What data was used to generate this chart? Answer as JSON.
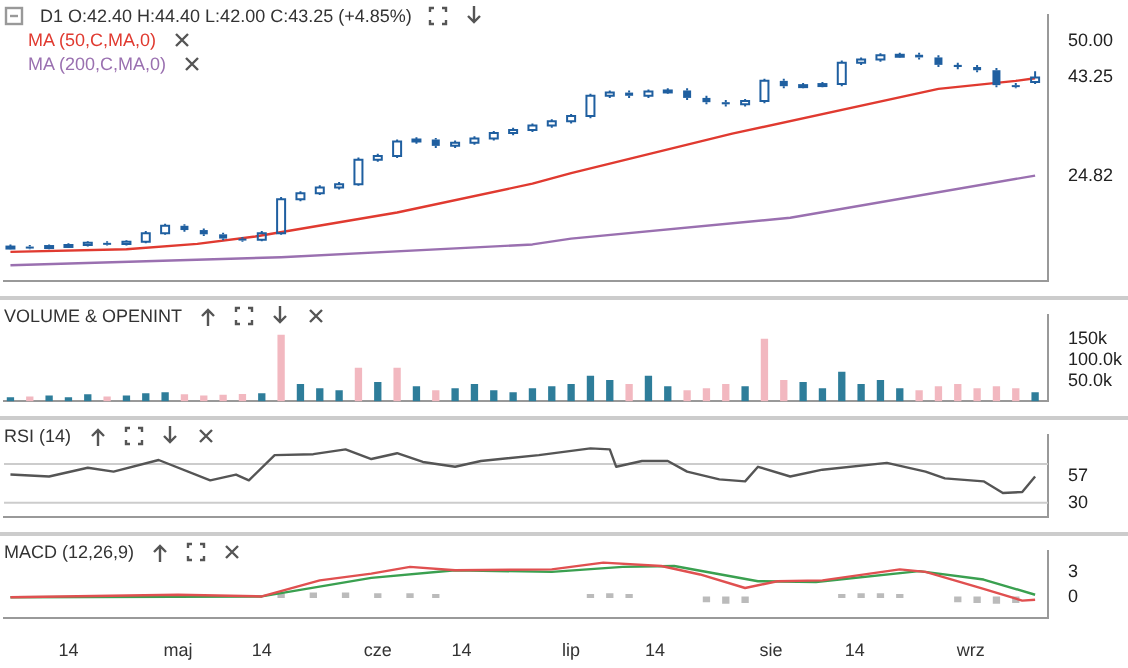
{
  "chart_data": [
    {
      "type": "candlestick",
      "title": "D1 O:42.40 H:44.40 L:42.00 C:43.25 (+4.85%)",
      "color": "#1f5fa0",
      "legend": "top left",
      "tick_labels": "y",
      "x": [
        "--04-05",
        "--04-08",
        "--04-11",
        "--04-14",
        "--04-17",
        "--04-20",
        "--04-23",
        "--04-26",
        "--04-29",
        "--05-02",
        "--05-05",
        "--05-08",
        "--05-11",
        "--05-14",
        "--05-17",
        "--05-20",
        "--05-23",
        "--05-26",
        "--05-29",
        "--06-01",
        "--06-04",
        "--06-07",
        "--06-10",
        "--06-13",
        "--06-16",
        "--06-19",
        "--06-22",
        "--06-25",
        "--06-28",
        "--07-01",
        "--07-04",
        "--07-07",
        "--07-10",
        "--07-13",
        "--07-16",
        "--07-19",
        "--07-22",
        "--07-25",
        "--07-28",
        "--07-31",
        "--08-03",
        "--08-06",
        "--08-09",
        "--08-12",
        "--08-15",
        "--08-18",
        "--08-21",
        "--08-24",
        "--08-27",
        "--08-30",
        "--09-02",
        "--09-05",
        "--09-08",
        "--09-11"
      ],
      "ohlc": [
        [
          11.3,
          11.9,
          11.0,
          11.5
        ],
        [
          11.5,
          11.8,
          11.0,
          11.3
        ],
        [
          11.3,
          11.9,
          11.0,
          11.6
        ],
        [
          11.6,
          12.1,
          11.3,
          11.8
        ],
        [
          11.8,
          12.5,
          11.5,
          12.2
        ],
        [
          12.2,
          12.5,
          11.7,
          12.0
        ],
        [
          12.0,
          12.7,
          11.7,
          12.4
        ],
        [
          12.4,
          14.4,
          12.1,
          14.0
        ],
        [
          14.0,
          15.8,
          13.7,
          15.4
        ],
        [
          15.4,
          15.7,
          14.3,
          14.6
        ],
        [
          14.6,
          14.9,
          13.5,
          13.8
        ],
        [
          13.8,
          14.1,
          12.7,
          13.0
        ],
        [
          13.0,
          13.3,
          12.4,
          12.8
        ],
        [
          12.8,
          14.4,
          12.5,
          14.0
        ],
        [
          14.0,
          20.8,
          13.7,
          20.4
        ],
        [
          20.4,
          21.9,
          20.0,
          21.5
        ],
        [
          21.5,
          23.0,
          21.2,
          22.6
        ],
        [
          22.6,
          23.6,
          22.2,
          23.2
        ],
        [
          23.2,
          28.2,
          22.9,
          27.8
        ],
        [
          27.8,
          28.9,
          27.4,
          28.5
        ],
        [
          28.5,
          31.6,
          28.1,
          31.2
        ],
        [
          31.2,
          32.0,
          30.8,
          31.6
        ],
        [
          31.6,
          31.9,
          30.0,
          30.4
        ],
        [
          30.4,
          31.4,
          30.0,
          31.0
        ],
        [
          31.0,
          32.2,
          30.6,
          31.8
        ],
        [
          31.8,
          33.2,
          31.4,
          32.8
        ],
        [
          32.8,
          33.8,
          32.4,
          33.4
        ],
        [
          33.4,
          34.6,
          33.0,
          34.2
        ],
        [
          34.2,
          35.4,
          33.8,
          35.0
        ],
        [
          35.0,
          36.4,
          34.6,
          36.0
        ],
        [
          36.0,
          40.2,
          35.6,
          39.8
        ],
        [
          39.8,
          40.8,
          39.4,
          40.4
        ],
        [
          40.4,
          40.8,
          39.4,
          39.8
        ],
        [
          39.8,
          41.0,
          39.4,
          40.6
        ],
        [
          40.6,
          41.2,
          40.2,
          40.8
        ],
        [
          40.8,
          41.2,
          39.0,
          39.4
        ],
        [
          39.4,
          39.8,
          38.2,
          38.6
        ],
        [
          38.6,
          39.0,
          37.8,
          38.2
        ],
        [
          38.2,
          39.2,
          37.8,
          38.8
        ],
        [
          38.8,
          43.0,
          38.4,
          42.6
        ],
        [
          42.6,
          43.0,
          41.2,
          41.6
        ],
        [
          41.6,
          42.2,
          41.2,
          41.8
        ],
        [
          41.8,
          42.4,
          41.4,
          42.0
        ],
        [
          42.0,
          46.4,
          41.6,
          46.0
        ],
        [
          46.0,
          47.0,
          45.6,
          46.6
        ],
        [
          46.6,
          47.8,
          46.2,
          47.4
        ],
        [
          47.4,
          47.9,
          47.0,
          47.5
        ],
        [
          47.5,
          47.9,
          46.6,
          47.0
        ],
        [
          47.0,
          47.4,
          45.2,
          45.6
        ],
        [
          45.6,
          46.0,
          44.8,
          45.2
        ],
        [
          45.2,
          45.6,
          44.2,
          44.6
        ],
        [
          44.6,
          45.0,
          41.4,
          41.8
        ],
        [
          41.8,
          42.2,
          41.2,
          41.6
        ],
        [
          42.4,
          44.4,
          42.0,
          43.25
        ]
      ],
      "series": [
        {
          "name": "MA (50,C,MA,0)",
          "type": "line",
          "color": "#e03a30",
          "x": [
            "--04-05",
            "--04-23",
            "--05-04",
            "--05-13",
            "--06-04",
            "--06-25",
            "--07-01",
            "--07-26",
            "--08-27",
            "--09-08",
            "--09-11"
          ],
          "values": [
            10.5,
            11.0,
            12.0,
            13.4,
            17.9,
            23.3,
            25.3,
            32.7,
            41.1,
            42.6,
            43.1
          ]
        },
        {
          "name": "MA (200,C,MA,0)",
          "type": "line",
          "color": "#9a70b0",
          "x": [
            "--04-05",
            "--05-17",
            "--06-25",
            "--07-01",
            "--08-04",
            "--09-11"
          ],
          "values": [
            8.0,
            9.5,
            11.9,
            13.0,
            16.9,
            24.82
          ]
        }
      ],
      "xlim": [
        "--04-04",
        "--09-13"
      ],
      "ylim": [
        5,
        55
      ],
      "yticks": [
        {
          "value": 50,
          "label": "50.00"
        },
        43.25,
        24.82
      ]
    },
    {
      "type": "bar",
      "title": "VOLUME & OPENINT",
      "tick_labels": "y",
      "x": [
        "--04-05",
        "--04-08",
        "--04-11",
        "--04-14",
        "--04-17",
        "--04-20",
        "--04-23",
        "--04-26",
        "--04-29",
        "--05-02",
        "--05-05",
        "--05-08",
        "--05-11",
        "--05-14",
        "--05-17",
        "--05-20",
        "--05-23",
        "--05-26",
        "--05-29",
        "--06-01",
        "--06-04",
        "--06-07",
        "--06-10",
        "--06-13",
        "--06-16",
        "--06-19",
        "--06-22",
        "--06-25",
        "--06-28",
        "--07-01",
        "--07-04",
        "--07-07",
        "--07-10",
        "--07-13",
        "--07-16",
        "--07-19",
        "--07-22",
        "--07-25",
        "--07-28",
        "--07-31",
        "--08-03",
        "--08-06",
        "--08-09",
        "--08-12",
        "--08-15",
        "--08-18",
        "--08-21",
        "--08-24",
        "--08-27",
        "--08-30",
        "--09-02",
        "--09-05",
        "--09-08",
        "--09-11"
      ],
      "values": [
        8000,
        10000,
        12000,
        8000,
        15000,
        10000,
        12000,
        18000,
        20000,
        15000,
        12000,
        14000,
        16000,
        18000,
        160000,
        40000,
        30000,
        25000,
        80000,
        45000,
        80000,
        35000,
        25000,
        30000,
        40000,
        25000,
        20000,
        30000,
        35000,
        40000,
        60000,
        50000,
        40000,
        60000,
        35000,
        25000,
        30000,
        40000,
        35000,
        150000,
        50000,
        45000,
        30000,
        70000,
        40000,
        50000,
        30000,
        25000,
        35000,
        40000,
        30000,
        35000,
        30000,
        20000
      ],
      "colors": [
        "#2e7d9a",
        "#f2b8c0",
        "#2e7d9a",
        "#2e7d9a",
        "#2e7d9a",
        "#f2b8c0",
        "#2e7d9a",
        "#2e7d9a",
        "#2e7d9a",
        "#f2b8c0",
        "#f2b8c0",
        "#f2b8c0",
        "#f2b8c0",
        "#2e7d9a",
        "#f2b8c0",
        "#2e7d9a",
        "#2e7d9a",
        "#2e7d9a",
        "#f2b8c0",
        "#2e7d9a",
        "#f2b8c0",
        "#2e7d9a",
        "#f2b8c0",
        "#2e7d9a",
        "#2e7d9a",
        "#2e7d9a",
        "#2e7d9a",
        "#2e7d9a",
        "#2e7d9a",
        "#2e7d9a",
        "#2e7d9a",
        "#2e7d9a",
        "#f2b8c0",
        "#2e7d9a",
        "#2e7d9a",
        "#f2b8c0",
        "#f2b8c0",
        "#f2b8c0",
        "#2e7d9a",
        "#f2b8c0",
        "#f2b8c0",
        "#2e7d9a",
        "#2e7d9a",
        "#2e7d9a",
        "#2e7d9a",
        "#2e7d9a",
        "#2e7d9a",
        "#f2b8c0",
        "#f2b8c0",
        "#f2b8c0",
        "#f2b8c0",
        "#f2b8c0",
        "#f2b8c0",
        "#2e7d9a"
      ],
      "xlim": [
        "--04-04",
        "--09-13"
      ],
      "ylim": [
        0,
        210000
      ],
      "yticks": [
        {
          "value": 50000,
          "label": "50.0k"
        },
        {
          "value": 100000,
          "label": "100.0k"
        },
        {
          "value": 150000,
          "label": "150k"
        }
      ]
    },
    {
      "type": "line",
      "title": "RSI (14)",
      "color": "#555555",
      "tick_labels": "y",
      "x": [
        "--04-05",
        "--04-11",
        "--04-17",
        "--04-21",
        "--04-28",
        "--05-06",
        "--05-10",
        "--05-12",
        "--05-16",
        "--05-22",
        "--05-27",
        "--05-31",
        "--06-04",
        "--06-08",
        "--06-13",
        "--06-17",
        "--06-26",
        "--07-04",
        "--07-07",
        "--07-08",
        "--07-12",
        "--07-16",
        "--07-19",
        "--07-24",
        "--07-28",
        "--07-30",
        "--08-04",
        "--08-09",
        "--08-19",
        "--08-25",
        "--08-28",
        "--09-03",
        "--09-06",
        "--09-09",
        "--09-11"
      ],
      "values": [
        59,
        57,
        66,
        62,
        74,
        53,
        59,
        53,
        79,
        80,
        85,
        75,
        81,
        72,
        67,
        73,
        79,
        86,
        85,
        67,
        73,
        73,
        62,
        54,
        52,
        67,
        57,
        64,
        71,
        62,
        55,
        52,
        40,
        41,
        57
      ],
      "ref_lines": [
        {
          "axis": "y",
          "value": 70,
          "color": "#cccccc"
        },
        {
          "axis": "y",
          "value": 30,
          "color": "#cccccc"
        }
      ],
      "xlim": [
        "--04-04",
        "--09-13"
      ],
      "ylim": [
        15,
        100
      ],
      "yticks": [
        30,
        57
      ]
    },
    {
      "type": "line",
      "title": "MACD (12,26,9)",
      "series": [
        {
          "type": "line",
          "color": "#e05050",
          "x": [
            "--04-05",
            "--05-01",
            "--05-14",
            "--05-23",
            "--05-31",
            "--06-06",
            "--06-13",
            "--06-28",
            "--07-06",
            "--07-15",
            "--07-21",
            "--07-28",
            "--08-02",
            "--08-09",
            "--08-21",
            "--08-25",
            "--09-03",
            "--09-09",
            "--09-11"
          ],
          "values": [
            0,
            0.3,
            0.1,
            2.0,
            2.8,
            3.6,
            3.2,
            3.3,
            4.1,
            3.7,
            2.7,
            1.1,
            1.9,
            2.0,
            3.3,
            3.0,
            1.0,
            -0.4,
            -0.3
          ]
        },
        {
          "type": "line",
          "color": "#3aa050",
          "x": [
            "--04-05",
            "--05-14",
            "--05-31",
            "--06-13",
            "--06-28",
            "--07-09",
            "--07-17",
            "--07-30",
            "--08-08",
            "--08-24",
            "--09-03",
            "--09-11"
          ],
          "values": [
            0,
            0.1,
            2.3,
            3.2,
            3.0,
            3.6,
            3.7,
            1.9,
            1.8,
            3.1,
            2.1,
            0.3
          ]
        },
        {
          "type": "bar",
          "color": "#bbbbbb",
          "x": [
            "--05-17",
            "--05-22",
            "--05-27",
            "--06-01",
            "--06-06",
            "--06-10",
            "--07-04",
            "--07-07",
            "--07-10",
            "--07-22",
            "--07-25",
            "--07-28",
            "--08-12",
            "--08-15",
            "--08-18",
            "--08-21",
            "--08-30",
            "--09-02",
            "--09-05",
            "--09-08"
          ],
          "values": [
            0.4,
            0.5,
            0.5,
            0.4,
            0.4,
            0.3,
            0.3,
            0.4,
            0.3,
            -0.5,
            -0.7,
            -0.6,
            0.3,
            0.4,
            0.4,
            0.3,
            -0.5,
            -0.6,
            -0.7,
            -0.6
          ]
        }
      ],
      "xlim": [
        "--04-04",
        "--09-13"
      ],
      "ylim": [
        -2.5,
        5.5
      ],
      "yticks": [
        0,
        3
      ],
      "xticks": [
        {
          "value": "--04-14",
          "label": "14"
        },
        {
          "value": "--05-01",
          "label": "maj"
        },
        {
          "value": "--05-14",
          "label": "14"
        },
        {
          "value": "--06-01",
          "label": "cze"
        },
        {
          "value": "--06-14",
          "label": "14"
        },
        {
          "value": "--07-01",
          "label": "lip"
        },
        {
          "value": "--07-14",
          "label": "14"
        },
        {
          "value": "--08-01",
          "label": "sie"
        },
        {
          "value": "--08-14",
          "label": "14"
        },
        {
          "value": "--09-01",
          "label": "wrz"
        }
      ]
    }
  ]
}
